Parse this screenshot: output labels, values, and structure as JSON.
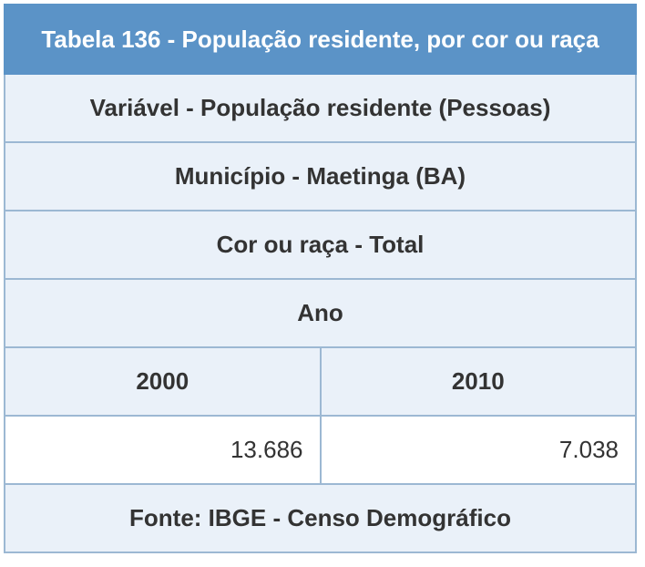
{
  "table": {
    "title": "Tabela 136 - População residente, por cor ou raça",
    "variable": "Variável - População residente (Pessoas)",
    "municipality": "Município - Maetinga (BA)",
    "race": "Cor ou raça - Total",
    "year_header": "Ano",
    "years": [
      "2000",
      "2010"
    ],
    "values": [
      "13.686",
      "7.038"
    ],
    "source": "Fonte: IBGE - Censo Demográfico"
  }
}
